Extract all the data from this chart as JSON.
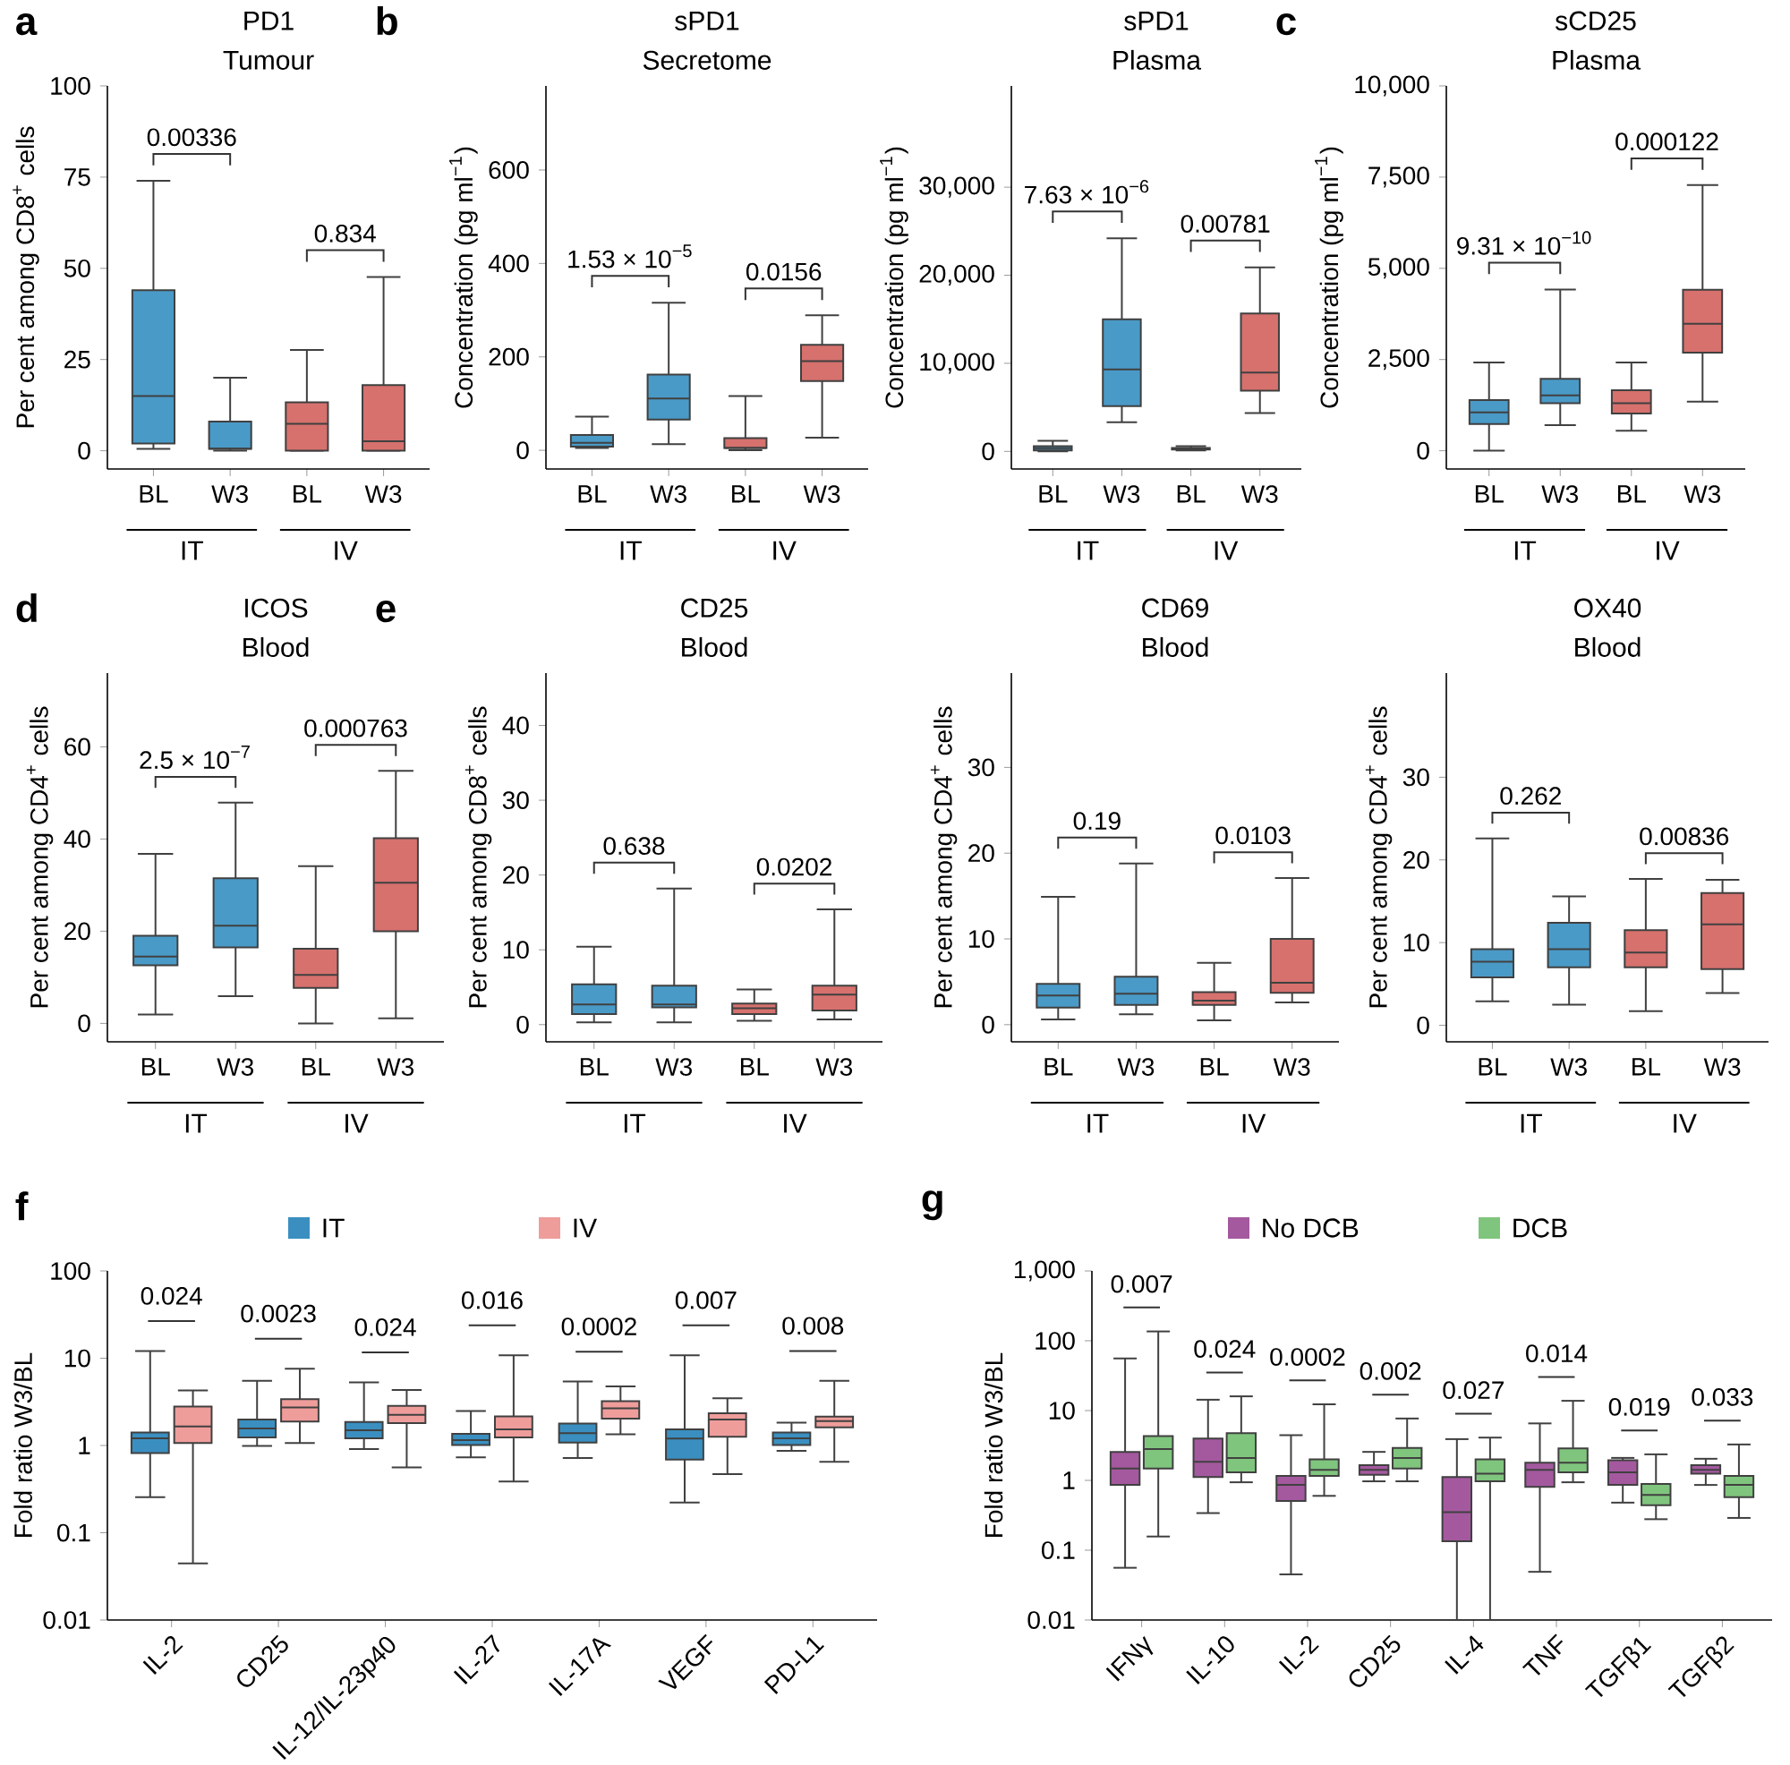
{
  "chart_data": [
    {
      "type": "box",
      "title": "PD1",
      "subtitle": "Tumour",
      "ylabel": "Per cent among CD8$^{+}$ cells",
      "categories": [
        "BL",
        "W3",
        "BL",
        "W3"
      ],
      "colors": [
        "#4a9ac7",
        "#4a9ac7",
        "#d6716e",
        "#d6716e"
      ],
      "boxes": [
        {
          "low": 0.5,
          "q1": 2,
          "median": 15,
          "q3": 44,
          "high": 74
        },
        {
          "low": 0,
          "q1": 0.5,
          "median": 0.6,
          "q3": 8,
          "high": 20
        },
        {
          "low": 0,
          "q1": 0,
          "median": 7.4,
          "q3": 13.3,
          "high": 27.6
        },
        {
          "low": 0,
          "q1": 0,
          "median": 2.6,
          "q3": 18,
          "high": 47.6
        }
      ],
      "ylim": [
        -5,
        100
      ],
      "yticks": [
        0,
        25,
        50,
        75,
        100
      ],
      "annotations": [
        "0.00336",
        "0.834",
        "IT",
        "IV",
        "a"
      ]
    },
    {
      "type": "box",
      "title": "sPD1",
      "subtitle": "Secretome",
      "ylabel": "Concentration (pg ml$^{−1}$)",
      "categories": [
        "BL",
        "W3",
        "BL",
        "W3"
      ],
      "colors": [
        "#4a9ac7",
        "#4a9ac7",
        "#d6716e",
        "#d6716e"
      ],
      "boxes": [
        {
          "low": 5,
          "q1": 8,
          "median": 16,
          "q3": 33,
          "high": 72
        },
        {
          "low": 13,
          "q1": 66,
          "median": 111,
          "q3": 162,
          "high": 316
        },
        {
          "low": 0,
          "q1": 5,
          "median": 5,
          "q3": 26,
          "high": 116
        },
        {
          "low": 27,
          "q1": 148,
          "median": 191,
          "q3": 226,
          "high": 289
        }
      ],
      "ylim": [
        -40,
        780
      ],
      "yticks": [
        0,
        200,
        400,
        600
      ],
      "annotations": [
        "1.53 × 10$^{−5}$",
        "0.0156",
        "IT",
        "IV",
        "b"
      ]
    },
    {
      "type": "box",
      "title": "sPD1",
      "subtitle": "Plasma",
      "ylabel": "Concentration (pg ml$^{−1}$)",
      "categories": [
        "BL",
        "W3",
        "BL",
        "W3"
      ],
      "colors": [
        "#4a9ac7",
        "#4a9ac7",
        "#d6716e",
        "#d6716e"
      ],
      "boxes": [
        {
          "low": 0,
          "q1": 100,
          "median": 350,
          "q3": 600,
          "high": 1200
        },
        {
          "low": 3300,
          "q1": 5150,
          "median": 9300,
          "q3": 15000,
          "high": 24200
        },
        {
          "low": 100,
          "q1": 200,
          "median": 300,
          "q3": 400,
          "high": 600
        },
        {
          "low": 4350,
          "q1": 6900,
          "median": 8950,
          "q3": 15650,
          "high": 20900
        }
      ],
      "ylim": [
        -2000,
        41500
      ],
      "yticks": [
        0,
        {
          "value": 10000,
          "label": "10,000"
        },
        {
          "value": 20000,
          "label": "20,000"
        },
        {
          "value": 30000,
          "label": "30,000"
        }
      ],
      "annotations": [
        "7.63 × 10$^{−6}$",
        "0.00781",
        "IT",
        "IV"
      ]
    },
    {
      "type": "box",
      "title": "sCD25",
      "subtitle": "Plasma",
      "ylabel": "Concentration (pg ml$^{−1}$)",
      "categories": [
        "BL",
        "W3",
        "BL",
        "W3"
      ],
      "colors": [
        "#4a9ac7",
        "#4a9ac7",
        "#d6716e",
        "#d6716e"
      ],
      "boxes": [
        {
          "low": 0,
          "q1": 730,
          "median": 1050,
          "q3": 1390,
          "high": 2420
        },
        {
          "low": 700,
          "q1": 1300,
          "median": 1520,
          "q3": 1970,
          "high": 4420
        },
        {
          "low": 550,
          "q1": 1020,
          "median": 1300,
          "q3": 1660,
          "high": 2420
        },
        {
          "low": 1345,
          "q1": 2690,
          "median": 3480,
          "q3": 4410,
          "high": 7280
        }
      ],
      "ylim": [
        -500,
        10000
      ],
      "yticks": [
        0,
        {
          "value": 2500,
          "label": "2,500"
        },
        {
          "value": 5000,
          "label": "5,000"
        },
        {
          "value": 7500,
          "label": "7,500"
        },
        {
          "value": 10000,
          "label": "10,000"
        }
      ],
      "annotations": [
        "9.31 × 10$^{−10}$",
        "0.000122",
        "IT",
        "IV",
        "c"
      ]
    },
    {
      "type": "box",
      "title": "ICOS",
      "subtitle": "Blood",
      "ylabel": "Per cent among CD4$^{+}$ cells",
      "categories": [
        "BL",
        "W3",
        "BL",
        "W3"
      ],
      "colors": [
        "#4a9ac7",
        "#4a9ac7",
        "#d6716e",
        "#d6716e"
      ],
      "boxes": [
        {
          "low": 1.9,
          "q1": 12.6,
          "median": 14.5,
          "q3": 19,
          "high": 36.8
        },
        {
          "low": 5.9,
          "q1": 16.5,
          "median": 21.2,
          "q3": 31.5,
          "high": 47.9
        },
        {
          "low": 0,
          "q1": 7.7,
          "median": 10.5,
          "q3": 16.2,
          "high": 34.1
        },
        {
          "low": 1.1,
          "q1": 20,
          "median": 30.5,
          "q3": 40.2,
          "high": 54.8
        }
      ],
      "ylim": [
        -4,
        76
      ],
      "yticks": [
        0,
        20,
        40,
        60
      ],
      "annotations": [
        "2.5 × 10$^{−7}$",
        "0.000763",
        "IT",
        "IV",
        "d"
      ]
    },
    {
      "type": "box",
      "title": "CD25",
      "subtitle": "Blood",
      "ylabel": "Per cent among CD8$^{+}$ cells",
      "categories": [
        "BL",
        "W3",
        "BL",
        "W3"
      ],
      "colors": [
        "#4a9ac7",
        "#4a9ac7",
        "#d6716e",
        "#d6716e"
      ],
      "boxes": [
        {
          "low": 0.3,
          "q1": 1.4,
          "median": 2.7,
          "q3": 5.4,
          "high": 10.4
        },
        {
          "low": 0.3,
          "q1": 2.3,
          "median": 2.7,
          "q3": 5.2,
          "high": 18.2
        },
        {
          "low": 0.5,
          "q1": 1.4,
          "median": 2.2,
          "q3": 2.8,
          "high": 4.7
        },
        {
          "low": 0.7,
          "q1": 1.9,
          "median": 4,
          "q3": 5.2,
          "high": 15.4
        }
      ],
      "ylim": [
        -2.3,
        47
      ],
      "yticks": [
        0,
        10,
        20,
        30,
        40
      ],
      "annotations": [
        "0.638",
        "0.0202",
        "IT",
        "IV",
        "e"
      ]
    },
    {
      "type": "box",
      "title": "CD69",
      "subtitle": "Blood",
      "ylabel": "Per cent among CD4$^{+}$ cells",
      "categories": [
        "BL",
        "W3",
        "BL",
        "W3"
      ],
      "colors": [
        "#4a9ac7",
        "#4a9ac7",
        "#d6716e",
        "#d6716e"
      ],
      "boxes": [
        {
          "low": 0.6,
          "q1": 2,
          "median": 3.4,
          "q3": 4.75,
          "high": 14.9
        },
        {
          "low": 1.2,
          "q1": 2.3,
          "median": 3.6,
          "q3": 5.6,
          "high": 18.8
        },
        {
          "low": 0.5,
          "q1": 2.3,
          "median": 2.8,
          "q3": 3.8,
          "high": 7.2
        },
        {
          "low": 2.6,
          "q1": 3.7,
          "median": 4.9,
          "q3": 10,
          "high": 17.1
        }
      ],
      "ylim": [
        -2,
        41
      ],
      "yticks": [
        0,
        10,
        20,
        30
      ],
      "annotations": [
        "0.19",
        "0.0103",
        "IT",
        "IV"
      ]
    },
    {
      "type": "box",
      "title": "OX40",
      "subtitle": "Blood",
      "ylabel": "Per cent among CD4$^{+}$ cells",
      "categories": [
        "BL",
        "W3",
        "BL",
        "W3"
      ],
      "colors": [
        "#4a9ac7",
        "#4a9ac7",
        "#d6716e",
        "#d6716e"
      ],
      "boxes": [
        {
          "low": 2.9,
          "q1": 5.8,
          "median": 7.7,
          "q3": 9.2,
          "high": 22.6
        },
        {
          "low": 2.5,
          "q1": 7,
          "median": 9.2,
          "q3": 12.4,
          "high": 15.6
        },
        {
          "low": 1.7,
          "q1": 7,
          "median": 8.8,
          "q3": 11.5,
          "high": 17.7
        },
        {
          "low": 3.9,
          "q1": 6.8,
          "median": 12.2,
          "q3": 16,
          "high": 17.6
        }
      ],
      "ylim": [
        -2,
        42.6
      ],
      "yticks": [
        0,
        10,
        20,
        30
      ],
      "annotations": [
        "0.262",
        "0.00836",
        "IT",
        "IV"
      ]
    },
    {
      "type": "box",
      "ylabel": "Fold ratio W3/BL",
      "categories": [
        "IL-2",
        "CD25",
        "IL-12/IL-23p40",
        "IL-27",
        "IL-17A",
        "VEGF",
        "PD-L1"
      ],
      "log": true,
      "legend": "top",
      "series": [
        {
          "name": "IT",
          "color": "#3a8fc0",
          "boxes": [
            {
              "low": 0.256,
              "q1": 0.82,
              "median": 1.21,
              "q3": 1.41,
              "high": 12.1
            },
            {
              "low": 0.99,
              "q1": 1.24,
              "median": 1.57,
              "q3": 1.98,
              "high": 5.5
            },
            {
              "low": 0.91,
              "q1": 1.21,
              "median": 1.49,
              "q3": 1.86,
              "high": 5.3
            },
            {
              "low": 0.73,
              "q1": 1.01,
              "median": 1.15,
              "q3": 1.36,
              "high": 2.49
            },
            {
              "low": 0.72,
              "q1": 1.08,
              "median": 1.38,
              "q3": 1.78,
              "high": 5.4
            },
            {
              "low": 0.222,
              "q1": 0.69,
              "median": 1.2,
              "q3": 1.53,
              "high": 10.8
            },
            {
              "low": 0.87,
              "q1": 1.01,
              "median": 1.21,
              "q3": 1.41,
              "high": 1.83
            }
          ]
        },
        {
          "name": "IV",
          "color": "#ee9d9b",
          "boxes": [
            {
              "low": 0.0445,
              "q1": 1.07,
              "median": 1.65,
              "q3": 2.8,
              "high": 4.27
            },
            {
              "low": 1.07,
              "q1": 1.88,
              "median": 2.73,
              "q3": 3.39,
              "high": 7.6
            },
            {
              "low": 0.56,
              "q1": 1.81,
              "median": 2.25,
              "q3": 2.84,
              "high": 4.33
            },
            {
              "low": 0.386,
              "q1": 1.24,
              "median": 1.53,
              "q3": 2.16,
              "high": 10.8
            },
            {
              "low": 1.34,
              "q1": 2.03,
              "median": 2.66,
              "q3": 3.22,
              "high": 4.74
            },
            {
              "low": 0.47,
              "q1": 1.26,
              "median": 1.98,
              "q3": 2.34,
              "high": 3.48
            },
            {
              "low": 0.65,
              "q1": 1.61,
              "median": 1.9,
              "q3": 2.14,
              "high": 5.5
            }
          ]
        }
      ],
      "ylim": [
        0.01,
        100
      ],
      "yticks": [
        0.01,
        0.1,
        1,
        10,
        100
      ],
      "annotations": [
        "0.024",
        "0.0023",
        "0.024",
        "0.016",
        "0.0002",
        "0.007",
        "0.008",
        "f"
      ]
    },
    {
      "type": "box",
      "ylabel": "Fold ratio W3/BL",
      "categories": [
        "IFNγ",
        "IL-10",
        "IL-2",
        "CD25",
        "IL-4",
        "TNF",
        "TGFβ1",
        "TGFβ2"
      ],
      "log": true,
      "legend": "top",
      "series": [
        {
          "name": "No DCB",
          "color": "#a4599f",
          "boxes": [
            {
              "low": 0.056,
              "q1": 0.86,
              "median": 1.48,
              "q3": 2.56,
              "high": 55.8
            },
            {
              "low": 0.34,
              "q1": 1.12,
              "median": 1.85,
              "q3": 3.97,
              "high": 14.3
            },
            {
              "low": 0.045,
              "q1": 0.506,
              "median": 0.86,
              "q3": 1.16,
              "high": 4.44
            },
            {
              "low": 0.97,
              "q1": 1.2,
              "median": 1.41,
              "q3": 1.65,
              "high": 2.56
            },
            {
              "low": 0.01,
              "q1": 0.134,
              "median": 0.35,
              "q3": 1.12,
              "high": 3.9
            },
            {
              "low": 0.049,
              "q1": 0.81,
              "median": 1.41,
              "q3": 1.79,
              "high": 6.55
            },
            {
              "low": 0.48,
              "q1": 0.86,
              "median": 1.3,
              "q3": 1.94,
              "high": 2.1
            },
            {
              "low": 0.86,
              "q1": 1.25,
              "median": 1.41,
              "q3": 1.65,
              "high": 2.04
            }
          ]
        },
        {
          "name": "DCB",
          "color": "#80c57e",
          "boxes": [
            {
              "low": 0.157,
              "q1": 1.48,
              "median": 2.82,
              "q3": 4.3,
              "high": 136
            },
            {
              "low": 0.94,
              "q1": 1.3,
              "median": 2.1,
              "q3": 4.74,
              "high": 16
            },
            {
              "low": 0.6,
              "q1": 1.16,
              "median": 1.41,
              "q3": 2,
              "high": 12.3
            },
            {
              "low": 0.97,
              "q1": 1.48,
              "median": 2.1,
              "q3": 2.92,
              "high": 7.7
            },
            {
              "low": 0.01,
              "q1": 0.97,
              "median": 1.25,
              "q3": 2,
              "high": 4.1
            },
            {
              "low": 0.94,
              "q1": 1.3,
              "median": 1.79,
              "q3": 2.87,
              "high": 13.8
            },
            {
              "low": 0.278,
              "q1": 0.44,
              "median": 0.62,
              "q3": 0.89,
              "high": 2.36
            },
            {
              "low": 0.29,
              "q1": 0.576,
              "median": 0.86,
              "q3": 1.16,
              "high": 3.27
            }
          ]
        }
      ],
      "ylim": [
        0.01,
        1000
      ],
      "yticks": [
        0.01,
        0.1,
        1,
        10,
        100,
        {
          "value": 1000,
          "label": "1,000"
        }
      ],
      "annotations": [
        "0.007",
        "0.024",
        "0.0002",
        "0.002",
        "0.027",
        "0.014",
        "0.019",
        "0.033",
        "g"
      ]
    }
  ]
}
